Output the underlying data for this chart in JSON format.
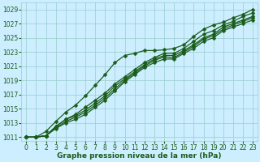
{
  "xlabel": "Graphe pression niveau de la mer (hPa)",
  "background_color": "#cceeff",
  "plot_bg_color": "#cceeff",
  "grid_color": "#99cccc",
  "line_color": "#1a5c1a",
  "ylim": [
    1010.5,
    1030.0
  ],
  "xlim": [
    -0.5,
    23.5
  ],
  "yticks": [
    1011,
    1013,
    1015,
    1017,
    1019,
    1021,
    1023,
    1025,
    1027,
    1029
  ],
  "xticks": [
    0,
    1,
    2,
    3,
    4,
    5,
    6,
    7,
    8,
    9,
    10,
    11,
    12,
    13,
    14,
    15,
    16,
    17,
    18,
    19,
    20,
    21,
    22,
    23
  ],
  "series": [
    [
      1011.0,
      1011.0,
      1011.8,
      1013.2,
      1014.5,
      1015.5,
      1016.8,
      1018.3,
      1019.8,
      1021.5,
      1022.5,
      1022.8,
      1023.2,
      1023.2,
      1023.3,
      1023.5,
      1024.0,
      1025.2,
      1026.2,
      1026.8,
      1027.2,
      1027.8,
      1028.3,
      1029.0
    ],
    [
      1011.0,
      1011.0,
      1011.2,
      1012.5,
      1013.5,
      1014.2,
      1015.2,
      1016.2,
      1017.2,
      1018.5,
      1019.5,
      1020.5,
      1021.5,
      1022.2,
      1022.8,
      1022.8,
      1023.5,
      1024.5,
      1025.5,
      1026.0,
      1026.8,
      1027.3,
      1028.0,
      1028.5
    ],
    [
      1011.0,
      1011.0,
      1011.2,
      1012.5,
      1013.5,
      1014.0,
      1014.8,
      1015.8,
      1016.8,
      1018.2,
      1019.2,
      1020.2,
      1021.2,
      1022.0,
      1022.5,
      1022.5,
      1023.2,
      1024.0,
      1025.0,
      1025.5,
      1026.5,
      1027.0,
      1027.5,
      1028.0
    ],
    [
      1011.0,
      1011.0,
      1011.2,
      1012.3,
      1013.2,
      1013.8,
      1014.5,
      1015.5,
      1016.5,
      1017.8,
      1019.0,
      1020.0,
      1021.0,
      1021.8,
      1022.3,
      1022.2,
      1023.0,
      1023.8,
      1024.8,
      1025.3,
      1026.2,
      1026.8,
      1027.3,
      1027.8
    ],
    [
      1011.0,
      1011.0,
      1011.2,
      1012.2,
      1013.0,
      1013.5,
      1014.2,
      1015.2,
      1016.2,
      1017.5,
      1018.8,
      1019.8,
      1020.8,
      1021.5,
      1022.0,
      1022.0,
      1022.8,
      1023.5,
      1024.5,
      1025.0,
      1026.0,
      1026.5,
      1027.0,
      1027.5
    ]
  ],
  "marker": "D",
  "markersize": 2.5,
  "linewidth": 0.9,
  "tick_fontsize": 5.5,
  "label_fontsize": 6.5
}
